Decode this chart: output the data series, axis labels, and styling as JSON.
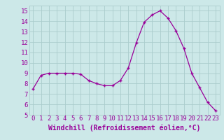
{
  "x": [
    0,
    1,
    2,
    3,
    4,
    5,
    6,
    7,
    8,
    9,
    10,
    11,
    12,
    13,
    14,
    15,
    16,
    17,
    18,
    19,
    20,
    21,
    22,
    23
  ],
  "y": [
    7.5,
    8.8,
    9.0,
    9.0,
    9.0,
    9.0,
    8.9,
    8.3,
    8.0,
    7.8,
    7.8,
    8.3,
    9.5,
    11.9,
    13.9,
    14.6,
    15.0,
    14.3,
    13.1,
    11.4,
    9.0,
    7.6,
    6.2,
    5.4
  ],
  "line_color": "#990099",
  "marker": "+",
  "marker_size": 3,
  "marker_color": "#990099",
  "bg_color": "#cce8e8",
  "grid_color": "#aacccc",
  "xlabel": "Windchill (Refroidissement éolien,°C)",
  "xlabel_color": "#990099",
  "xlabel_fontsize": 7,
  "tick_color": "#990099",
  "tick_labelsize": 6.5,
  "xlim": [
    -0.5,
    23.5
  ],
  "ylim": [
    5,
    15.5
  ],
  "yticks": [
    5,
    6,
    7,
    8,
    9,
    10,
    11,
    12,
    13,
    14,
    15
  ],
  "xticks": [
    0,
    1,
    2,
    3,
    4,
    5,
    6,
    7,
    8,
    9,
    10,
    11,
    12,
    13,
    14,
    15,
    16,
    17,
    18,
    19,
    20,
    21,
    22,
    23
  ]
}
